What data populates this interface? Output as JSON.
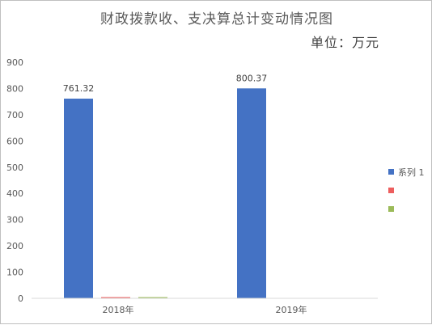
{
  "chart_data": {
    "type": "bar",
    "title": "财政拨款收、支决算总计变动情况图",
    "subtitle": "单位：万元",
    "categories": [
      "2018年",
      "2019年"
    ],
    "ylim": [
      0,
      900
    ],
    "yticks": [
      "0",
      "100",
      "200",
      "300",
      "400",
      "500",
      "600",
      "700",
      "800",
      "900"
    ],
    "grid": false,
    "legend_position": "right",
    "series": [
      {
        "name": "系列 1",
        "color": "#4472c4",
        "values": [
          761.32,
          800.37
        ],
        "labels": [
          "761.32",
          "800.37"
        ]
      },
      {
        "name": "",
        "color": "#ed5e5e",
        "values": [
          0,
          null
        ],
        "labels": [
          "",
          ""
        ]
      },
      {
        "name": "",
        "color": "#9bbb59",
        "values": [
          0,
          null
        ],
        "labels": [
          "",
          ""
        ]
      }
    ]
  }
}
